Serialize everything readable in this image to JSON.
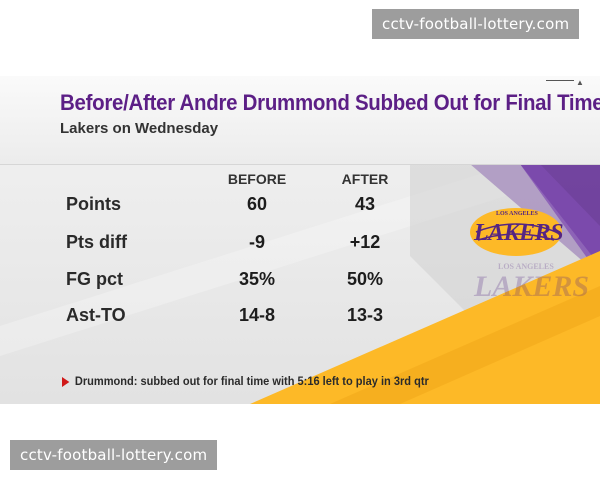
{
  "watermark": {
    "top": "cctv-football-lottery.com",
    "bottom": "cctv-football-lottery.com"
  },
  "graphic": {
    "title": "Before/After Andre Drummond Subbed Out for Final Time",
    "subtitle": "Lakers on Wednesday",
    "columns": [
      "BEFORE",
      "AFTER"
    ],
    "rows": [
      {
        "label": "Points",
        "before": "60",
        "after": "43"
      },
      {
        "label": "Pts diff",
        "before": "-9",
        "after": "+12"
      },
      {
        "label": "FG pct",
        "before": "35%",
        "after": "50%"
      },
      {
        "label": "Ast-TO",
        "before": "14-8",
        "after": "13-3"
      }
    ],
    "footnote": "Drummond: subbed out for final time with 5:16 left to play in 3rd qtr",
    "logo": {
      "small_text": "LOS ANGELES",
      "main_text": "LAKERS"
    },
    "colors": {
      "purple": "#552583",
      "gold": "#fdb927",
      "accent_red": "#d01919"
    },
    "icons": {
      "footnote_marker": "red-triangle-icon",
      "corner": "up-arrow-icon"
    }
  }
}
